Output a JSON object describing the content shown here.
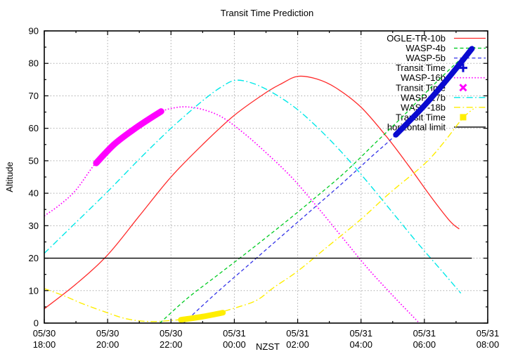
{
  "page": {
    "background": "#ffffff"
  },
  "chart_data": {
    "type": "line",
    "title": "Transit Time Prediction",
    "xlabel": "NZST",
    "ylabel": "Altitude",
    "x_axis": {
      "tick_labels": [
        [
          "05/30",
          "18:00"
        ],
        [
          "05/30",
          "20:00"
        ],
        [
          "05/30",
          "22:00"
        ],
        [
          "05/31",
          "00:00"
        ],
        [
          "05/31",
          "02:00"
        ],
        [
          "05/31",
          "04:00"
        ],
        [
          "05/31",
          "06:00"
        ],
        [
          "05/31",
          "08:00"
        ]
      ],
      "hours_span": 14,
      "minor_tick_every_hours": 1
    },
    "y_axis": {
      "ticks": [
        0,
        10,
        20,
        30,
        40,
        50,
        60,
        70,
        80,
        90
      ],
      "min": 0,
      "max": 90,
      "minor_step": 5
    },
    "grid": {
      "show": true,
      "color": "#aaaaaa"
    },
    "horizontal_limit_altitude": 20,
    "legend_position": "top-right",
    "series": [
      {
        "name": "OGLE-TR-10b",
        "color": "#ff2b2b",
        "style": "solid",
        "width": 1.3,
        "points": [
          [
            0,
            4.4
          ],
          [
            1,
            12
          ],
          [
            2,
            21
          ],
          [
            3,
            33
          ],
          [
            4,
            45
          ],
          [
            5,
            55
          ],
          [
            6,
            64
          ],
          [
            7,
            71
          ],
          [
            7.5,
            73.8
          ],
          [
            8,
            76
          ],
          [
            8.6,
            75.2
          ],
          [
            9.2,
            72.5
          ],
          [
            10,
            66.5
          ],
          [
            10.8,
            57.5
          ],
          [
            11.5,
            48.5
          ],
          [
            12.2,
            39
          ],
          [
            12.8,
            31.5
          ],
          [
            13.1,
            29
          ]
        ]
      },
      {
        "name": "WASP-4b",
        "color": "#00cc22",
        "style": "dashed",
        "width": 1.3,
        "points": [
          [
            3.65,
            0
          ],
          [
            4.5,
            7.5
          ],
          [
            5.5,
            15
          ],
          [
            6.5,
            22.5
          ],
          [
            7.6,
            31
          ],
          [
            8.6,
            39
          ],
          [
            9.5,
            46.5
          ],
          [
            10.4,
            55
          ],
          [
            11.3,
            63.5
          ],
          [
            12.2,
            72.5
          ],
          [
            13,
            80
          ],
          [
            13.6,
            85
          ]
        ]
      },
      {
        "name": "WASP-5b",
        "color": "#3535e8",
        "style": "dashed",
        "width": 1.3,
        "points": [
          [
            4.4,
            0
          ],
          [
            5.4,
            9
          ],
          [
            6.4,
            17.5
          ],
          [
            7.4,
            26
          ],
          [
            8.4,
            34.5
          ],
          [
            9.4,
            43
          ],
          [
            10.3,
            51
          ],
          [
            11.1,
            58
          ],
          [
            12,
            67
          ],
          [
            12.8,
            76
          ],
          [
            13.5,
            84.5
          ]
        ]
      },
      {
        "name": "Transit Time",
        "color": "#0a0ad0",
        "style": "band",
        "marker": "plus",
        "width": 8,
        "points": [
          [
            11.1,
            58
          ],
          [
            12,
            67
          ],
          [
            12.8,
            76
          ],
          [
            13.5,
            84.5
          ]
        ]
      },
      {
        "name": "WASP-16b",
        "color": "#ff00ff",
        "style": "dotted",
        "width": 1.7,
        "points": [
          [
            0,
            33
          ],
          [
            0.5,
            36.5
          ],
          [
            1,
            41
          ],
          [
            1.6,
            49
          ],
          [
            2.2,
            55
          ],
          [
            2.8,
            59.5
          ],
          [
            3.3,
            62.8
          ],
          [
            3.7,
            65.2
          ],
          [
            4.1,
            66.3
          ],
          [
            4.5,
            66.6
          ],
          [
            5,
            65.8
          ],
          [
            5.6,
            63.5
          ],
          [
            6.3,
            58.5
          ],
          [
            7,
            52.5
          ],
          [
            7.8,
            45
          ],
          [
            8.6,
            36
          ],
          [
            9.4,
            26.5
          ],
          [
            10.2,
            17
          ],
          [
            11,
            8.5
          ],
          [
            11.8,
            0.4
          ]
        ]
      },
      {
        "name": "Transit Time",
        "color": "#ff00ff",
        "style": "band",
        "marker": "cross",
        "width": 9,
        "points": [
          [
            1.64,
            49.3
          ],
          [
            2.2,
            55
          ],
          [
            2.8,
            59.5
          ],
          [
            3.3,
            62.8
          ],
          [
            3.69,
            65.2
          ]
        ]
      },
      {
        "name": "WASP-17b",
        "color": "#00e8e8",
        "style": "dashdot",
        "width": 1.4,
        "points": [
          [
            0,
            21.5
          ],
          [
            1,
            31
          ],
          [
            2,
            40.5
          ],
          [
            3,
            50.5
          ],
          [
            4,
            60
          ],
          [
            5,
            68.5
          ],
          [
            5.6,
            72.8
          ],
          [
            6.05,
            74.8
          ],
          [
            6.6,
            73.8
          ],
          [
            7.2,
            71
          ],
          [
            7.9,
            66.5
          ],
          [
            8.6,
            60.5
          ],
          [
            9.4,
            52.5
          ],
          [
            10.2,
            43.5
          ],
          [
            11,
            34
          ],
          [
            11.8,
            24.5
          ],
          [
            12.6,
            15.5
          ],
          [
            13.15,
            9.2
          ]
        ]
      },
      {
        "name": "WASP-18b",
        "color": "#ffee00",
        "style": "dashdot",
        "width": 1.4,
        "points": [
          [
            0,
            10.6
          ],
          [
            0.6,
            8.5
          ],
          [
            1.2,
            6
          ],
          [
            1.9,
            3.5
          ],
          [
            2.6,
            1.3
          ],
          [
            3.3,
            0.5
          ],
          [
            4,
            0.8
          ],
          [
            4.7,
            1.6
          ],
          [
            5.3,
            2.7
          ],
          [
            6,
            4.6
          ],
          [
            6.7,
            7
          ],
          [
            7.25,
            11
          ],
          [
            8,
            16
          ],
          [
            9,
            24
          ],
          [
            10,
            32
          ],
          [
            10.9,
            40
          ],
          [
            12,
            49
          ],
          [
            12.6,
            55.5
          ],
          [
            13.2,
            63
          ],
          [
            13.55,
            66
          ]
        ]
      },
      {
        "name": "Transit Time",
        "color": "#ffee00",
        "style": "band",
        "marker": "square",
        "width": 8,
        "points": [
          [
            4.31,
            1
          ],
          [
            5,
            2
          ],
          [
            5.64,
            3.2
          ]
        ]
      },
      {
        "name": "horizontal limit",
        "color": "#000000",
        "style": "solid",
        "width": 1.4,
        "points": [
          [
            0,
            20
          ],
          [
            13.5,
            20
          ]
        ]
      }
    ]
  }
}
